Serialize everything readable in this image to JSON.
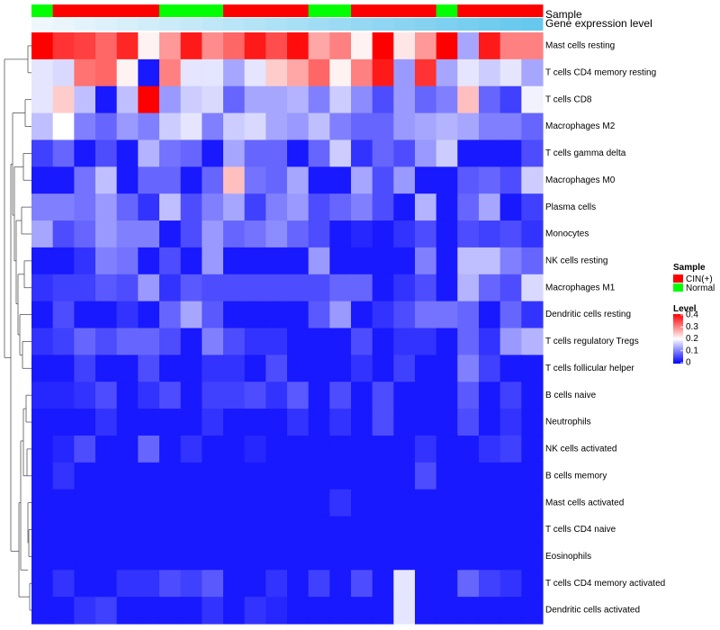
{
  "chart_data": {
    "type": "heatmap",
    "annotation_tracks": [
      "Sample",
      "Gene expression level"
    ],
    "sample_groups": [
      "N",
      "C",
      "C",
      "C",
      "C",
      "C",
      "N",
      "N",
      "N",
      "C",
      "C",
      "C",
      "C",
      "N",
      "N",
      "C",
      "C",
      "C",
      "C",
      "N",
      "C",
      "C",
      "C",
      "C"
    ],
    "gene_expression_level": [
      0.02,
      0.05,
      0.09,
      0.13,
      0.17,
      0.21,
      0.25,
      0.29,
      0.33,
      0.37,
      0.41,
      0.45,
      0.49,
      0.53,
      0.57,
      0.61,
      0.65,
      0.69,
      0.73,
      0.77,
      0.81,
      0.85,
      0.89,
      0.93
    ],
    "rows": [
      "Mast cells resting",
      "T cells CD4 memory resting",
      "T cells CD8",
      "Macrophages M2",
      "T cells gamma delta",
      "Macrophages M0",
      "Plasma cells",
      "Monocytes",
      "NK cells resting",
      "Macrophages M1",
      "Dendritic cells resting",
      "T cells regulatory  Tregs",
      "T cells follicular helper",
      "B cells naive",
      "Neutrophils",
      "NK cells activated",
      "B cells memory",
      "Mast cells activated",
      "T cells CD4 naive",
      "Eosinophils",
      "T cells CD4 memory activated",
      "Dendritic cells activated"
    ],
    "values": [
      [
        0.4,
        0.36,
        0.35,
        0.32,
        0.37,
        0.21,
        0.28,
        0.38,
        0.29,
        0.32,
        0.38,
        0.34,
        0.39,
        0.27,
        0.3,
        0.21,
        0.4,
        0.22,
        0.28,
        0.4,
        0.13,
        0.38,
        0.3,
        0.3
      ],
      [
        0.18,
        0.17,
        0.31,
        0.32,
        0.21,
        0.02,
        0.3,
        0.18,
        0.18,
        0.13,
        0.18,
        0.24,
        0.27,
        0.32,
        0.21,
        0.3,
        0.38,
        0.12,
        0.36,
        0.13,
        0.18,
        0.16,
        0.18,
        0.13
      ],
      [
        0.18,
        0.24,
        0.15,
        0.02,
        0.15,
        0.4,
        0.12,
        0.16,
        0.17,
        0.08,
        0.13,
        0.13,
        0.14,
        0.1,
        0.16,
        0.11,
        0.06,
        0.12,
        0.08,
        0.1,
        0.25,
        0.08,
        0.05,
        0.19
      ],
      [
        0.15,
        0.2,
        0.1,
        0.08,
        0.12,
        0.1,
        0.16,
        0.18,
        0.1,
        0.16,
        0.17,
        0.13,
        0.12,
        0.15,
        0.1,
        0.08,
        0.08,
        0.12,
        0.13,
        0.14,
        0.13,
        0.1,
        0.1,
        0.08
      ],
      [
        0.05,
        0.08,
        0.02,
        0.06,
        0.02,
        0.14,
        0.09,
        0.08,
        0.02,
        0.13,
        0.08,
        0.08,
        0.02,
        0.08,
        0.16,
        0.04,
        0.08,
        0.06,
        0.12,
        0.16,
        0.02,
        0.02,
        0.02,
        0.06
      ],
      [
        0.02,
        0.02,
        0.09,
        0.15,
        0.02,
        0.08,
        0.08,
        0.02,
        0.08,
        0.25,
        0.09,
        0.08,
        0.13,
        0.02,
        0.02,
        0.13,
        0.06,
        0.12,
        0.02,
        0.02,
        0.07,
        0.08,
        0.06,
        0.16
      ],
      [
        0.1,
        0.1,
        0.09,
        0.12,
        0.08,
        0.04,
        0.15,
        0.06,
        0.1,
        0.13,
        0.05,
        0.1,
        0.12,
        0.06,
        0.08,
        0.1,
        0.06,
        0.02,
        0.14,
        0.02,
        0.08,
        0.13,
        0.02,
        0.05
      ],
      [
        0.13,
        0.06,
        0.08,
        0.12,
        0.1,
        0.1,
        0.02,
        0.06,
        0.12,
        0.08,
        0.09,
        0.11,
        0.08,
        0.06,
        0.02,
        0.03,
        0.02,
        0.04,
        0.06,
        0.02,
        0.06,
        0.05,
        0.06,
        0.04
      ],
      [
        0.02,
        0.02,
        0.04,
        0.1,
        0.09,
        0.02,
        0.06,
        0.02,
        0.12,
        0.02,
        0.02,
        0.02,
        0.02,
        0.12,
        0.02,
        0.02,
        0.02,
        0.02,
        0.1,
        0.02,
        0.15,
        0.15,
        0.1,
        0.08
      ],
      [
        0.04,
        0.05,
        0.05,
        0.07,
        0.06,
        0.12,
        0.04,
        0.07,
        0.06,
        0.06,
        0.06,
        0.06,
        0.06,
        0.06,
        0.08,
        0.08,
        0.02,
        0.04,
        0.06,
        0.02,
        0.14,
        0.08,
        0.06,
        0.17
      ],
      [
        0.02,
        0.06,
        0.02,
        0.02,
        0.04,
        0.02,
        0.08,
        0.13,
        0.07,
        0.02,
        0.02,
        0.02,
        0.02,
        0.07,
        0.12,
        0.02,
        0.04,
        0.06,
        0.09,
        0.09,
        0.08,
        0.02,
        0.08,
        0.04
      ],
      [
        0.04,
        0.05,
        0.08,
        0.06,
        0.08,
        0.08,
        0.06,
        0.02,
        0.1,
        0.06,
        0.04,
        0.04,
        0.02,
        0.02,
        0.02,
        0.06,
        0.02,
        0.04,
        0.04,
        0.02,
        0.08,
        0.04,
        0.12,
        0.14
      ],
      [
        0.02,
        0.02,
        0.05,
        0.02,
        0.02,
        0.06,
        0.02,
        0.02,
        0.04,
        0.04,
        0.02,
        0.06,
        0.02,
        0.02,
        0.02,
        0.04,
        0.02,
        0.05,
        0.02,
        0.02,
        0.1,
        0.05,
        0.02,
        0.02
      ],
      [
        0.03,
        0.03,
        0.04,
        0.06,
        0.02,
        0.04,
        0.06,
        0.02,
        0.05,
        0.05,
        0.06,
        0.04,
        0.07,
        0.02,
        0.06,
        0.02,
        0.06,
        0.02,
        0.02,
        0.02,
        0.07,
        0.02,
        0.05,
        0.02
      ],
      [
        0.02,
        0.02,
        0.02,
        0.04,
        0.02,
        0.02,
        0.02,
        0.02,
        0.04,
        0.02,
        0.02,
        0.02,
        0.04,
        0.02,
        0.04,
        0.02,
        0.06,
        0.02,
        0.02,
        0.02,
        0.06,
        0.02,
        0.04,
        0.02
      ],
      [
        0.02,
        0.03,
        0.06,
        0.02,
        0.02,
        0.08,
        0.02,
        0.04,
        0.02,
        0.02,
        0.03,
        0.02,
        0.02,
        0.02,
        0.02,
        0.02,
        0.02,
        0.02,
        0.04,
        0.02,
        0.02,
        0.04,
        0.05,
        0.02
      ],
      [
        0.02,
        0.04,
        0.02,
        0.02,
        0.02,
        0.02,
        0.02,
        0.02,
        0.02,
        0.02,
        0.02,
        0.02,
        0.02,
        0.02,
        0.02,
        0.02,
        0.02,
        0.02,
        0.06,
        0.02,
        0.02,
        0.02,
        0.02,
        0.02
      ],
      [
        0.02,
        0.02,
        0.02,
        0.02,
        0.02,
        0.02,
        0.02,
        0.02,
        0.02,
        0.02,
        0.02,
        0.02,
        0.02,
        0.02,
        0.04,
        0.02,
        0.02,
        0.02,
        0.02,
        0.02,
        0.02,
        0.02,
        0.02,
        0.02
      ],
      [
        0.02,
        0.02,
        0.02,
        0.02,
        0.02,
        0.02,
        0.02,
        0.02,
        0.02,
        0.02,
        0.02,
        0.02,
        0.02,
        0.02,
        0.02,
        0.02,
        0.02,
        0.02,
        0.02,
        0.02,
        0.02,
        0.02,
        0.02,
        0.02
      ],
      [
        0.02,
        0.02,
        0.02,
        0.02,
        0.02,
        0.02,
        0.02,
        0.02,
        0.02,
        0.02,
        0.02,
        0.02,
        0.02,
        0.02,
        0.02,
        0.02,
        0.02,
        0.02,
        0.02,
        0.02,
        0.02,
        0.02,
        0.02,
        0.02
      ],
      [
        0.02,
        0.04,
        0.02,
        0.02,
        0.04,
        0.04,
        0.06,
        0.05,
        0.07,
        0.02,
        0.02,
        0.04,
        0.02,
        0.05,
        0.02,
        0.06,
        0.02,
        0.18,
        0.02,
        0.02,
        0.08,
        0.05,
        0.04,
        0.02
      ],
      [
        0.02,
        0.02,
        0.04,
        0.05,
        0.02,
        0.02,
        0.02,
        0.02,
        0.04,
        0.02,
        0.04,
        0.03,
        0.02,
        0.02,
        0.02,
        0.02,
        0.02,
        0.18,
        0.02,
        0.02,
        0.02,
        0.02,
        0.02,
        0.02
      ]
    ],
    "legend": {
      "sample_title": "Sample",
      "sample_entries": [
        {
          "label": "CIN(+)",
          "color": "#ff0000"
        },
        {
          "label": "Normal",
          "color": "#00ff00"
        }
      ],
      "level_title": "Level",
      "level_ticks": [
        "0.4",
        "0.3",
        "0.2",
        "0.1",
        "0"
      ],
      "level_tick_values": [
        0.4,
        0.3,
        0.2,
        0.1,
        0
      ],
      "color_low": "#0000ff",
      "color_mid": "#ffffff",
      "color_high": "#ff0000",
      "range": [
        0,
        0.4
      ]
    }
  }
}
